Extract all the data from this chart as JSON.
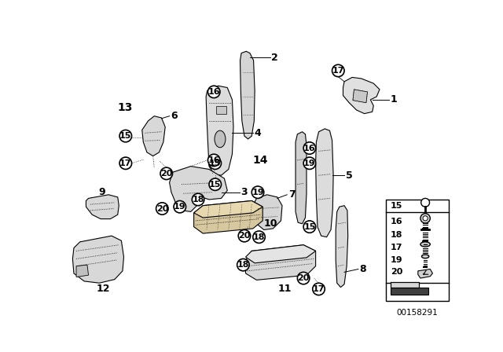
{
  "bg": "#ffffff",
  "fig_code": "00158291",
  "lw": 0.8,
  "parts_color": "#e8e8e8",
  "dark_line": "#000000"
}
